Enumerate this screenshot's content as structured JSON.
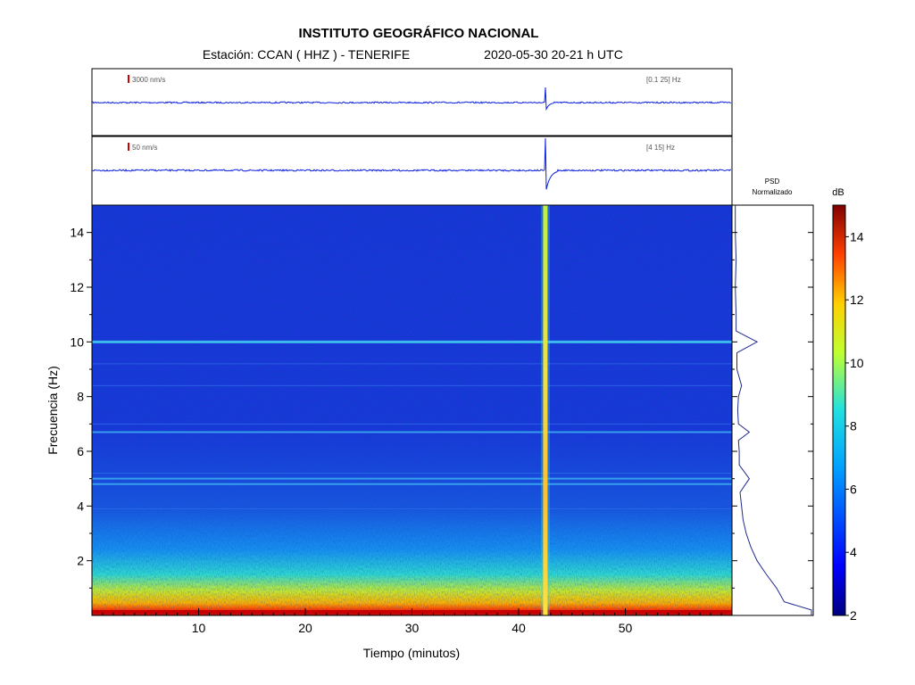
{
  "header": {
    "title": "INSTITUTO GEOGRÁFICO NACIONAL",
    "station_line": "Estación:  CCAN ( HHZ ) - TENERIFE",
    "datetime_line": "2020-05-30  20-21 h UTC"
  },
  "colors": {
    "trace": "#0a1ee0",
    "scale_mark": "#d00000",
    "spec_bg": "#1a36d8",
    "psd_line": "#1f2a8a"
  },
  "chart_data": [
    {
      "type": "line",
      "panel": "seismogram-broadband",
      "scale_label": "3000 nm/s",
      "band_label": "[0.1 25] Hz",
      "xlim": [
        0,
        60
      ],
      "event_minute": 42.5
    },
    {
      "type": "line",
      "panel": "seismogram-filtered",
      "scale_label": "50 nm/s",
      "band_label": "[4 15] Hz",
      "xlim": [
        0,
        60
      ],
      "event_minute": 42.5
    },
    {
      "type": "heatmap",
      "panel": "spectrogram",
      "xlabel": "Tiempo (minutos)",
      "ylabel": "Frecuencia (Hz)",
      "xlim": [
        0,
        60
      ],
      "ylim": [
        0,
        15
      ],
      "xticks": [
        10,
        20,
        30,
        40,
        50
      ],
      "yticks": [
        2,
        4,
        6,
        8,
        10,
        12,
        14
      ],
      "event_minute": 42.5,
      "persistent_lines_hz": [
        10.0,
        6.7,
        5.0,
        4.8
      ]
    },
    {
      "type": "line",
      "panel": "psd",
      "title_line1": "PSD",
      "title_line2": "Normalizado",
      "freq": [
        15,
        14,
        13,
        12,
        11,
        10.4,
        10,
        9.6,
        9,
        8.4,
        8,
        7.5,
        7,
        6.7,
        6.4,
        6,
        5.5,
        5.0,
        4.5,
        4,
        3.5,
        3,
        2.5,
        2,
        1.5,
        1,
        0.5,
        0.2,
        0
      ],
      "value": [
        0.02,
        0.02,
        0.03,
        0.02,
        0.03,
        0.03,
        0.3,
        0.04,
        0.04,
        0.1,
        0.06,
        0.05,
        0.06,
        0.2,
        0.06,
        0.07,
        0.07,
        0.2,
        0.08,
        0.1,
        0.12,
        0.16,
        0.22,
        0.3,
        0.42,
        0.55,
        0.65,
        1.0,
        1.0
      ]
    },
    {
      "type": "heatmap",
      "panel": "colorbar",
      "unit": "dB",
      "range": [
        2,
        15
      ],
      "ticks": [
        2,
        4,
        6,
        8,
        10,
        12,
        14
      ]
    }
  ]
}
